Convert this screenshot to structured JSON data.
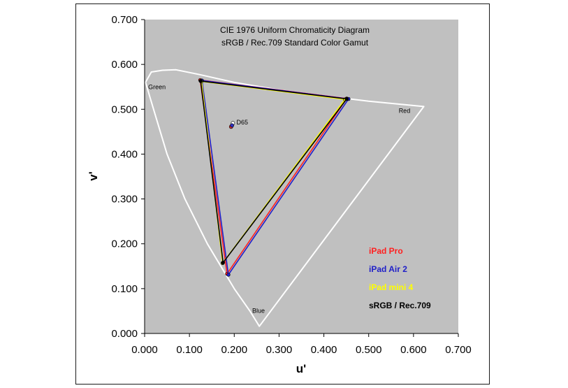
{
  "chart_data": {
    "type": "scatter",
    "title": "CIE 1976 Uniform Chromaticity Diagram",
    "subtitle": "sRGB / Rec.709 Standard Color Gamut",
    "xlabel": "u'",
    "ylabel": "v'",
    "xlim": [
      0,
      0.7
    ],
    "ylim": [
      0,
      0.7
    ],
    "xticks": [
      "0.000",
      "0.100",
      "0.200",
      "0.300",
      "0.400",
      "0.500",
      "0.600",
      "0.700"
    ],
    "yticks": [
      "0.000",
      "0.100",
      "0.200",
      "0.300",
      "0.400",
      "0.500",
      "0.600",
      "0.700"
    ],
    "grid": false,
    "plot_background": "#c0c0c0",
    "legend_position": "bottom-right",
    "locus": {
      "color": "#ffffff",
      "points": [
        [
          0.256,
          0.016
        ],
        [
          0.235,
          0.05
        ],
        [
          0.2,
          0.1
        ],
        [
          0.14,
          0.2
        ],
        [
          0.09,
          0.3
        ],
        [
          0.05,
          0.4
        ],
        [
          0.02,
          0.5
        ],
        [
          0.002,
          0.56
        ],
        [
          0.015,
          0.583
        ],
        [
          0.04,
          0.587
        ],
        [
          0.07,
          0.588
        ],
        [
          0.12,
          0.578
        ],
        [
          0.2,
          0.56
        ],
        [
          0.3,
          0.543
        ],
        [
          0.4,
          0.53
        ],
        [
          0.5,
          0.518
        ],
        [
          0.623,
          0.506
        ]
      ]
    },
    "annotations": [
      {
        "text": "Green",
        "x": 0.008,
        "y": 0.545
      },
      {
        "text": "Red",
        "x": 0.567,
        "y": 0.492
      },
      {
        "text": "Blue",
        "x": 0.24,
        "y": 0.046
      },
      {
        "text": "D65",
        "x": 0.205,
        "y": 0.466
      }
    ],
    "whitepoints": [
      {
        "x": 0.197,
        "y": 0.469,
        "color": "#ffffff"
      },
      {
        "x": 0.193,
        "y": 0.461,
        "color": "#e03030"
      },
      {
        "x": 0.195,
        "y": 0.464,
        "color": "#3030c0"
      }
    ],
    "series": [
      {
        "name": "iPad Pro",
        "color": "#ff2020",
        "points": [
          [
            0.124,
            0.565
          ],
          [
            0.451,
            0.524
          ],
          [
            0.184,
            0.133
          ]
        ]
      },
      {
        "name": "iPad Air 2",
        "color": "#2020c8",
        "points": [
          [
            0.128,
            0.564
          ],
          [
            0.455,
            0.523
          ],
          [
            0.187,
            0.131
          ]
        ]
      },
      {
        "name": "iPad mini 4",
        "color": "#ffff00",
        "points": [
          [
            0.127,
            0.562
          ],
          [
            0.447,
            0.522
          ],
          [
            0.174,
            0.157
          ]
        ]
      },
      {
        "name": "sRGB / Rec.709",
        "color": "#000000",
        "points": [
          [
            0.125,
            0.563
          ],
          [
            0.451,
            0.523
          ],
          [
            0.175,
            0.158
          ]
        ]
      }
    ]
  }
}
